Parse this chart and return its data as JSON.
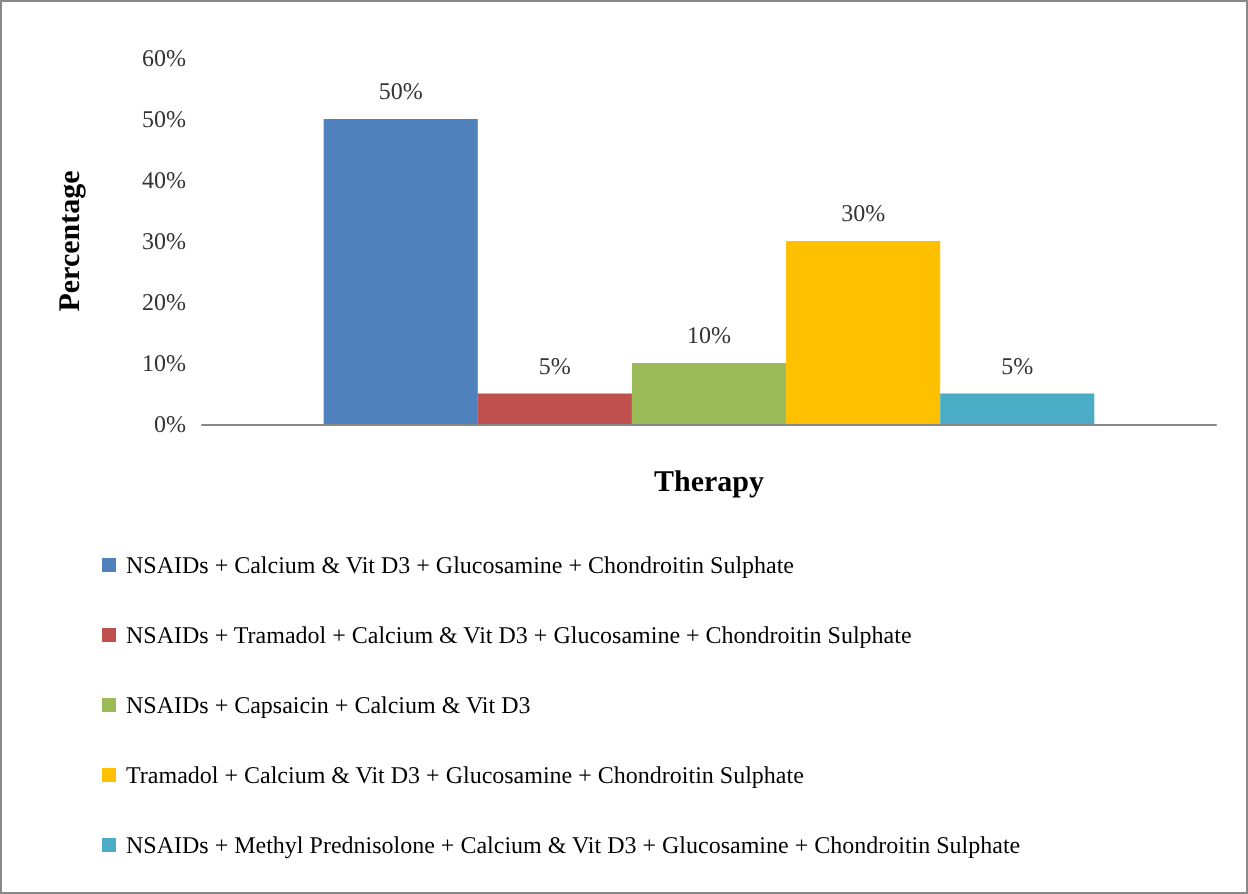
{
  "chart_data": {
    "type": "bar",
    "categories": [
      null
    ],
    "xlabel": "Therapy",
    "ylabel": "Percentage",
    "ylim": [
      0,
      60
    ],
    "yticks": [
      {
        "value": 0,
        "label": "0%"
      },
      {
        "value": 10,
        "label": "10%"
      },
      {
        "value": 20,
        "label": "20%"
      },
      {
        "value": 30,
        "label": "30%"
      },
      {
        "value": 40,
        "label": "40%"
      },
      {
        "value": 50,
        "label": "50%"
      },
      {
        "value": 60,
        "label": "60%"
      }
    ],
    "grid": false,
    "legend": "bottom",
    "series": [
      {
        "name": "NSAIDs + Calcium & Vit D3 + Glucosamine + Chondroitin Sulphate",
        "color": "#4f81bd",
        "values": [
          50
        ],
        "value_labels": [
          "50%"
        ]
      },
      {
        "name": "NSAIDs + Tramadol + Calcium & Vit D3 + Glucosamine + Chondroitin Sulphate",
        "color": "#c0504d",
        "values": [
          5
        ],
        "value_labels": [
          "5%"
        ]
      },
      {
        "name": "NSAIDs + Capsaicin + Calcium & Vit D3",
        "color": "#9bbb59",
        "values": [
          10
        ],
        "value_labels": [
          "10%"
        ]
      },
      {
        "name": "Tramadol + Calcium & Vit D3 + Glucosamine + Chondroitin Sulphate",
        "color": "#ffc000",
        "values": [
          30
        ],
        "value_labels": [
          "30%"
        ]
      },
      {
        "name": "NSAIDs + Methyl Prednisolone + Calcium & Vit D3 + Glucosamine + Chondroitin Sulphate",
        "color": "#4bacc6",
        "values": [
          5
        ],
        "value_labels": [
          "5%"
        ]
      }
    ]
  }
}
